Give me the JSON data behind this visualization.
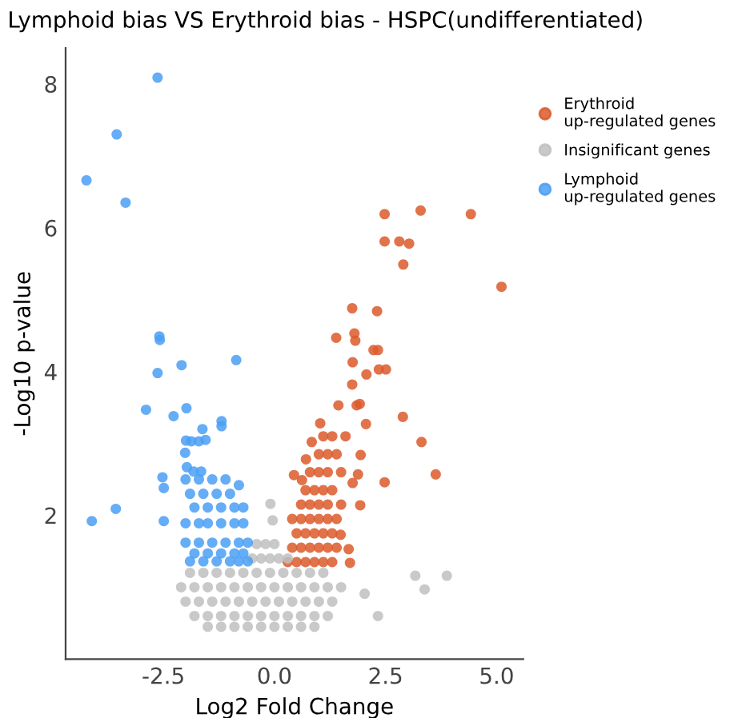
{
  "chart_data": {
    "type": "scatter",
    "title": "Lymphoid bias VS Erythroid bias - HSPC(undifferentiated)",
    "xlabel": "Log2 Fold Change",
    "ylabel": "-Log10 p-value",
    "xlim": [
      -4.7,
      5.6
    ],
    "ylim": [
      0,
      8.5
    ],
    "xticks": [
      -2.5,
      {
        "value": 0,
        "label": "0.0"
      },
      2.5,
      {
        "value": 5,
        "label": "5.0"
      }
    ],
    "yticks": [
      2,
      4,
      6,
      8
    ],
    "grid": false,
    "legend": "right",
    "marker": "circle",
    "series": [
      {
        "name": "Erythroid\nup-regulated genes",
        "color": "#dc5a2b",
        "x": [
          2.48,
          3.29,
          4.42,
          2.48,
          2.81,
          3.03,
          2.9,
          5.11,
          1.75,
          2.31,
          1.39,
          1.8,
          1.82,
          2.23,
          2.33,
          1.76,
          2.35,
          2.51,
          2.07,
          1.75,
          1.44,
          1.85,
          1.92,
          2.89,
          3.31,
          3.63,
          2.48,
          2.06,
          1.03,
          0.84,
          0.71,
          0.44,
          0.62,
          1.94,
          1.88,
          1.93,
          1.67,
          1.7,
          1.49,
          1.76,
          0.3,
          0.5,
          0.7,
          0.9,
          1.1,
          1.3,
          0.4,
          0.6,
          0.8,
          1.0,
          1.2,
          1.4,
          0.5,
          0.7,
          0.9,
          1.1,
          1.3,
          0.4,
          0.6,
          0.8,
          1.0,
          1.2,
          1.4,
          0.6,
          0.8,
          1.0,
          1.2,
          1.5,
          0.7,
          0.9,
          1.1,
          1.3,
          0.8,
          1.0,
          1.2,
          1.5,
          1.0,
          1.2,
          1.4,
          1.1,
          1.3,
          1.6
        ],
        "values": [
          6.19,
          6.24,
          6.19,
          5.81,
          5.81,
          5.78,
          5.49,
          5.18,
          4.88,
          4.84,
          4.47,
          4.53,
          4.43,
          4.3,
          4.3,
          4.13,
          4.03,
          4.03,
          3.96,
          3.82,
          3.53,
          3.53,
          3.55,
          3.37,
          3.02,
          2.57,
          2.46,
          3.27,
          3.28,
          3.02,
          2.78,
          2.56,
          2.49,
          2.84,
          2.57,
          2.14,
          1.53,
          1.34,
          1.73,
          2.45,
          1.35,
          1.35,
          1.35,
          1.35,
          1.35,
          1.35,
          1.55,
          1.55,
          1.55,
          1.55,
          1.55,
          1.55,
          1.75,
          1.75,
          1.75,
          1.75,
          1.75,
          1.95,
          1.95,
          1.95,
          1.95,
          1.95,
          1.95,
          2.15,
          2.15,
          2.15,
          2.15,
          2.15,
          2.35,
          2.35,
          2.35,
          2.35,
          2.6,
          2.6,
          2.6,
          2.6,
          2.85,
          2.85,
          2.85,
          3.1,
          3.1,
          3.1
        ]
      },
      {
        "name": "Insignificant genes",
        "color": "#c0c0c0",
        "x": [
          3.17,
          3.38,
          3.88,
          2.03,
          2.33,
          -0.09,
          -0.04,
          -1.5,
          -1.2,
          -0.9,
          -0.6,
          -0.3,
          0.0,
          0.3,
          0.6,
          0.9,
          -1.8,
          -1.5,
          -1.2,
          -0.9,
          -0.6,
          -0.3,
          0.0,
          0.3,
          0.6,
          0.9,
          1.2,
          -2.0,
          -1.7,
          -1.4,
          -1.1,
          -0.8,
          -0.5,
          -0.2,
          0.1,
          0.4,
          0.7,
          1.0,
          1.3,
          -2.1,
          -1.8,
          -1.5,
          -1.2,
          -0.9,
          -0.6,
          -0.3,
          0.0,
          0.3,
          0.6,
          0.9,
          1.2,
          1.5,
          -1.9,
          -1.6,
          -1.3,
          -1.0,
          -0.7,
          -0.4,
          -0.1,
          0.2,
          0.5,
          0.8,
          1.1,
          -0.5,
          -0.3,
          -0.1,
          0.1,
          0.3,
          -0.4,
          -0.2,
          0.0
        ],
        "values": [
          1.16,
          0.97,
          1.16,
          0.91,
          0.6,
          2.16,
          1.93,
          0.45,
          0.45,
          0.45,
          0.45,
          0.45,
          0.45,
          0.45,
          0.45,
          0.45,
          0.6,
          0.6,
          0.6,
          0.6,
          0.6,
          0.6,
          0.6,
          0.6,
          0.6,
          0.6,
          0.6,
          0.8,
          0.8,
          0.8,
          0.8,
          0.8,
          0.8,
          0.8,
          0.8,
          0.8,
          0.8,
          0.8,
          0.8,
          1.0,
          1.0,
          1.0,
          1.0,
          1.0,
          1.0,
          1.0,
          1.0,
          1.0,
          1.0,
          1.0,
          1.0,
          1.0,
          1.2,
          1.2,
          1.2,
          1.2,
          1.2,
          1.2,
          1.2,
          1.2,
          1.2,
          1.2,
          1.2,
          1.4,
          1.4,
          1.4,
          1.4,
          1.4,
          1.6,
          1.6,
          1.6
        ]
      },
      {
        "name": "Lymphoid\nup-regulated genes",
        "color": "#4a9ff5",
        "x": [
          -2.63,
          -3.55,
          -4.23,
          -3.35,
          -2.59,
          -2.58,
          -2.63,
          -2.09,
          -0.86,
          -2.89,
          -2.27,
          -1.98,
          -1.62,
          -1.19,
          -1.19,
          -1.99,
          -1.87,
          -1.7,
          -1.55,
          -2.01,
          -1.97,
          -1.82,
          -1.65,
          -2.52,
          -2.49,
          -2.49,
          -3.57,
          -4.11,
          -0.8,
          -1.9,
          -1.6,
          -1.3,
          -1.0,
          -0.8,
          -0.6,
          -1.8,
          -1.5,
          -1.2,
          -0.9,
          -0.7,
          -2.0,
          -1.7,
          -1.4,
          -1.1,
          -0.8,
          -0.6,
          -2.0,
          -1.7,
          -1.5,
          -1.2,
          -0.9,
          -0.7,
          -1.8,
          -1.5,
          -1.2,
          -0.9,
          -0.7,
          -1.9,
          -1.6,
          -1.3,
          -1.0,
          -2.0,
          -1.7,
          -1.4,
          -1.1
        ],
        "values": [
          8.09,
          7.3,
          6.66,
          6.35,
          4.49,
          4.44,
          3.98,
          4.09,
          4.16,
          3.47,
          3.38,
          3.49,
          3.2,
          3.31,
          3.24,
          3.04,
          3.03,
          3.03,
          3.05,
          2.87,
          2.67,
          2.61,
          2.61,
          2.53,
          2.38,
          1.92,
          2.09,
          1.92,
          2.42,
          1.36,
          1.36,
          1.36,
          1.36,
          1.36,
          1.36,
          1.47,
          1.47,
          1.47,
          1.47,
          1.47,
          1.62,
          1.62,
          1.62,
          1.62,
          1.62,
          1.62,
          1.89,
          1.89,
          1.89,
          1.89,
          1.89,
          1.89,
          2.11,
          2.11,
          2.11,
          2.11,
          2.11,
          2.3,
          2.3,
          2.3,
          2.3,
          2.5,
          2.5,
          2.5,
          2.5
        ]
      }
    ]
  }
}
